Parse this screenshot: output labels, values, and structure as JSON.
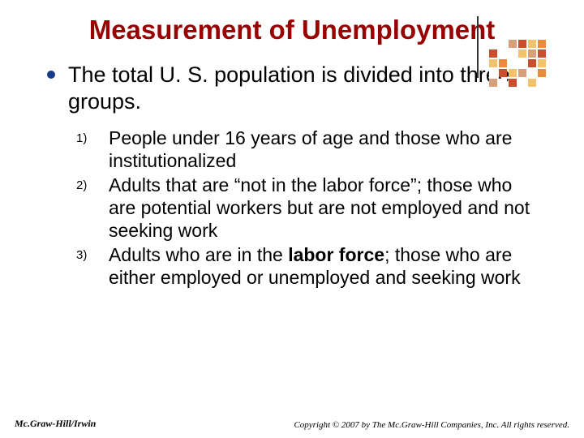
{
  "title": "Measurement of Unemployment",
  "main_bullet": {
    "text": "The total U. S. population is divided into three groups.",
    "dot_color": "#1a3a8a"
  },
  "sub_items": [
    {
      "marker": "1)",
      "html": "People under 16 years of age and those who are institutionalized"
    },
    {
      "marker": "2)",
      "html": "Adults that are “not in the labor force”; those who are potential workers but are not employed and not seeking work"
    },
    {
      "marker": "3)",
      "html": "Adults who are in the <b>labor force</b>; those who are either employed or unemployed and seeking work"
    }
  ],
  "footer": {
    "left": "Mc.Graw-Hill/Irwin",
    "right": "Copyright © 2007 by The Mc.Graw-Hill Companies, Inc. All rights reserved."
  },
  "decor_grid": {
    "rows": [
      [
        "#ffffff",
        "#ffffff",
        "#d8a07a",
        "#c94e2e",
        "#f4c26b",
        "#e88b3a"
      ],
      [
        "#c94e2e",
        "#ffffff",
        "#ffffff",
        "#f4c26b",
        "#d8a07a",
        "#c94e2e"
      ],
      [
        "#f4c26b",
        "#e88b3a",
        "#ffffff",
        "#ffffff",
        "#c94e2e",
        "#f4c26b"
      ],
      [
        "#ffffff",
        "#c94e2e",
        "#f4c26b",
        "#d8a07a",
        "#ffffff",
        "#e88b3a"
      ],
      [
        "#d8a07a",
        "#ffffff",
        "#c94e2e",
        "#ffffff",
        "#f4c26b",
        "#ffffff"
      ]
    ]
  }
}
